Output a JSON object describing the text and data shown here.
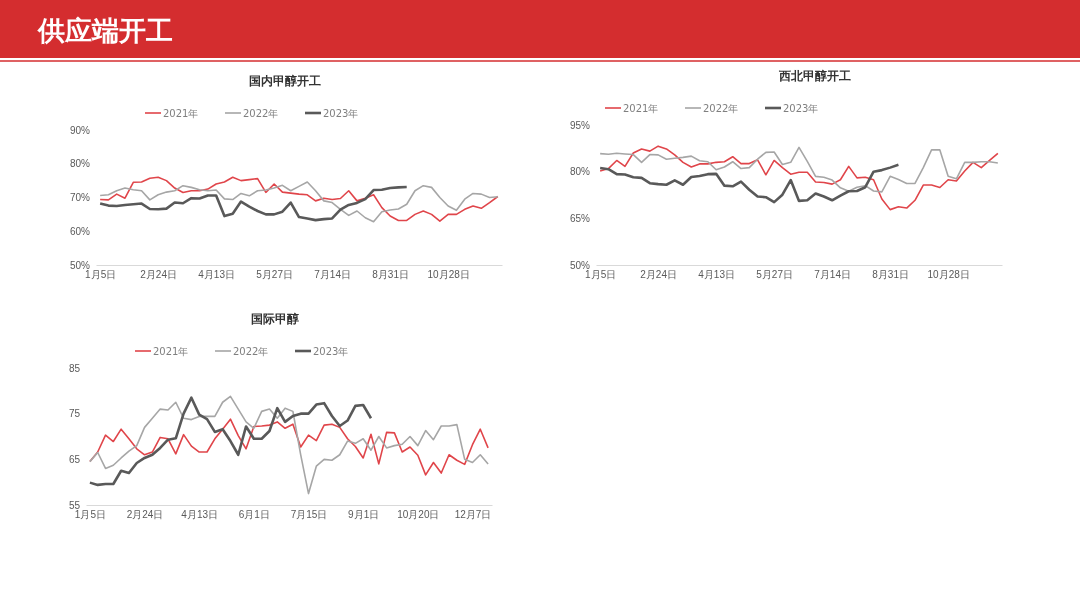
{
  "chart_data": [
    {
      "type": "line",
      "title": "国内甲醇开工",
      "annotations": [
        "供应端开工"
      ],
      "legend": "top",
      "marker": "none",
      "line_style": "solid",
      "categories": [
        "1月5日",
        null,
        null,
        null,
        null,
        null,
        null,
        "2月24日",
        null,
        null,
        null,
        null,
        null,
        null,
        "4月13日",
        null,
        null,
        null,
        null,
        null,
        null,
        "5月27日",
        null,
        null,
        null,
        null,
        null,
        null,
        "7月14日",
        null,
        null,
        null,
        null,
        null,
        null,
        "8月31日",
        null,
        null,
        null,
        null,
        null,
        null,
        "10月28日",
        null,
        null,
        null,
        null,
        null,
        null
      ],
      "ylim": [
        50,
        90
      ],
      "yticks": [
        {
          "value": 50,
          "label": "50%"
        },
        {
          "value": 60,
          "label": "60%"
        },
        {
          "value": 70,
          "label": "70%"
        },
        {
          "value": 80,
          "label": "80%"
        },
        {
          "value": 90,
          "label": "90%"
        }
      ],
      "series": [
        {
          "name": "2021年",
          "color": "#e0454a",
          "values": [
            69.4,
            69.3,
            71,
            69.8,
            74.5,
            74.6,
            75.7,
            76,
            75,
            72.8,
            71.5,
            72,
            72,
            72.5,
            74,
            74.6,
            76,
            75,
            75.3,
            75.6,
            71.5,
            74,
            71.6,
            71.3,
            71,
            70.8,
            69,
            69.8,
            69.4,
            69.7,
            72,
            69,
            69.8,
            70.8,
            67,
            64.5,
            63.2,
            63.2,
            65,
            66,
            65,
            63,
            65,
            65,
            66.5,
            67.5,
            66.8,
            68.5,
            70.3
          ]
        },
        {
          "name": "2022年",
          "color": "#a6a6a6",
          "values": [
            70.6,
            70.8,
            72,
            72.8,
            72.3,
            72,
            69.3,
            70.8,
            71.6,
            72,
            73.5,
            73,
            72.3,
            72,
            72.2,
            69.6,
            69.4,
            71.2,
            70.5,
            72,
            72.2,
            72.8,
            73.6,
            72,
            73.3,
            74.6,
            72,
            69,
            68.5,
            66.5,
            64.7,
            66,
            64,
            62.8,
            65.8,
            66.3,
            66.6,
            68,
            72,
            73.5,
            73,
            70,
            67.5,
            66.2,
            69.5,
            71.2,
            71,
            70,
            70.2
          ]
        },
        {
          "name": "2023年",
          "color": "#595959",
          "values": [
            68.2,
            67.6,
            67.5,
            67.8,
            68,
            68.2,
            66.6,
            66.5,
            66.7,
            68.5,
            68.3,
            69.8,
            69.7,
            70.6,
            70.6,
            64.5,
            65.2,
            68.8,
            67.3,
            66,
            65,
            65,
            65.8,
            68.5,
            64.2,
            63.8,
            63.3,
            63.6,
            63.8,
            66.4,
            67.8,
            68.4,
            69.5,
            72.2,
            72.3,
            72.8,
            73,
            73.1,
            null,
            null,
            null,
            null,
            null,
            null,
            null,
            null,
            null,
            null,
            null
          ]
        }
      ]
    },
    {
      "type": "line",
      "title": "西北甲醇开工",
      "legend": "top",
      "marker": "none",
      "line_style": "solid",
      "categories": [
        "1月5日",
        null,
        null,
        null,
        null,
        null,
        null,
        "2月24日",
        null,
        null,
        null,
        null,
        null,
        null,
        "4月13日",
        null,
        null,
        null,
        null,
        null,
        null,
        "5月27日",
        null,
        null,
        null,
        null,
        null,
        null,
        "7月14日",
        null,
        null,
        null,
        null,
        null,
        null,
        "8月31日",
        null,
        null,
        null,
        null,
        null,
        null,
        "10月28日",
        null,
        null,
        null,
        null,
        null,
        null
      ],
      "ylim": [
        50,
        95
      ],
      "yticks": [
        {
          "value": 50,
          "label": "50%"
        },
        {
          "value": 65,
          "label": "65%"
        },
        {
          "value": 80,
          "label": "80%"
        },
        {
          "value": 95,
          "label": "95%"
        }
      ],
      "series": [
        {
          "name": "2021年",
          "color": "#e0454a",
          "values": [
            80.2,
            81,
            83.6,
            81.7,
            86,
            87.3,
            86.6,
            88.2,
            87.3,
            85.4,
            83,
            81.5,
            82.5,
            82.5,
            83,
            83.2,
            84.8,
            82.6,
            82.6,
            83.8,
            79,
            83.6,
            81.3,
            79.2,
            79.8,
            79.8,
            76.7,
            76.5,
            76,
            77.4,
            81.7,
            78,
            78.2,
            77.4,
            71.2,
            67.8,
            68.7,
            68.3,
            70.8,
            75.7,
            75.7,
            74.9,
            77.4,
            77,
            80.2,
            83,
            81.3,
            83.6,
            85.9
          ]
        },
        {
          "name": "2022年",
          "color": "#a6a6a6",
          "values": [
            85.8,
            85.6,
            85.9,
            85.7,
            85.5,
            83,
            85.5,
            85.4,
            84,
            84.3,
            84.6,
            85,
            83.5,
            83.2,
            80.6,
            81.5,
            83.2,
            81,
            81.3,
            84,
            86.2,
            86.3,
            82.3,
            83,
            87.8,
            83.3,
            78.5,
            78.2,
            77.3,
            74.8,
            73.7,
            75,
            75.5,
            73.8,
            73.5,
            78.5,
            77.5,
            76.2,
            76.2,
            81.3,
            87,
            87,
            78.5,
            77.7,
            83,
            83,
            83.2,
            83.2,
            82.8
          ]
        },
        {
          "name": "2023年",
          "color": "#595959",
          "values": [
            81.2,
            80.8,
            79.2,
            79.1,
            78.2,
            78,
            76.3,
            76,
            75.8,
            77.2,
            75.8,
            78.3,
            78.6,
            79.2,
            79.3,
            75.5,
            75.3,
            76.8,
            74.2,
            72,
            71.8,
            70.2,
            72.6,
            77.3,
            70.6,
            70.8,
            73,
            72,
            70.8,
            72.3,
            73.7,
            73.8,
            75,
            80,
            80.5,
            81.3,
            82.2,
            null,
            null,
            null,
            null,
            null,
            null,
            null,
            null,
            null,
            null,
            null,
            null
          ]
        }
      ]
    },
    {
      "type": "line",
      "title": "国际甲醇",
      "legend": "top",
      "marker": "none",
      "line_style": "solid",
      "categories": [
        "1月5日",
        null,
        null,
        null,
        null,
        null,
        null,
        "2月24日",
        null,
        null,
        null,
        null,
        null,
        null,
        "4月13日",
        null,
        null,
        null,
        null,
        null,
        null,
        "6月1日",
        null,
        null,
        null,
        null,
        null,
        null,
        "7月15日",
        null,
        null,
        null,
        null,
        null,
        null,
        "9月1日",
        null,
        null,
        null,
        null,
        null,
        null,
        "10月20日",
        null,
        null,
        null,
        null,
        null,
        null,
        "12月7日",
        null,
        null
      ],
      "ylim": [
        55,
        85
      ],
      "yticks": [
        55,
        65,
        75,
        85
      ],
      "series": [
        {
          "name": "2021年",
          "color": "#e0454a",
          "values": [
            64.5,
            66.6,
            70.3,
            68.9,
            71.6,
            69.5,
            67.3,
            66,
            66.6,
            69.8,
            69.5,
            66.2,
            70.4,
            67.9,
            66.6,
            66.6,
            69.5,
            71.6,
            73.8,
            70.2,
            67.3,
            72.2,
            72.3,
            72.5,
            73.2,
            71.8,
            72.7,
            67.7,
            70.3,
            69.1,
            72.5,
            72.7,
            72,
            69.5,
            67.8,
            65.3,
            70.5,
            64,
            70.9,
            70.8,
            66.6,
            67.7,
            65.9,
            61.6,
            64.3,
            62,
            66,
            64.8,
            63.9,
            68.2,
            71.6,
            67.5
          ]
        },
        {
          "name": "2022年",
          "color": "#a6a6a6",
          "values": [
            64.5,
            66.5,
            63,
            63.7,
            65.3,
            66.8,
            68,
            72,
            74,
            76,
            75.8,
            77.5,
            74,
            73.7,
            74.4,
            74.4,
            74.4,
            77.5,
            78.8,
            76,
            73.2,
            71.8,
            75.5,
            76,
            74,
            76.2,
            75.5,
            66,
            57.5,
            63.5,
            65,
            64.8,
            66,
            69,
            68.5,
            69.5,
            67,
            70,
            67.5,
            68,
            68.3,
            70,
            68,
            71.3,
            69.3,
            72.3,
            72.3,
            72.6,
            65,
            64.3,
            66,
            64
          ]
        },
        {
          "name": "2023年",
          "color": "#595959",
          "values": [
            59.9,
            59.4,
            59.6,
            59.6,
            62.5,
            62,
            64.2,
            65.3,
            66,
            67.5,
            69.3,
            69.6,
            75,
            78.5,
            74.8,
            73.8,
            71,
            71.6,
            69,
            66,
            72.2,
            69.5,
            69.5,
            71.2,
            76.2,
            73.2,
            74.5,
            75,
            75,
            77,
            77.3,
            74.5,
            72.3,
            73.5,
            76.7,
            76.9,
            74,
            null,
            null,
            null,
            null,
            null,
            null,
            null,
            null,
            null,
            null,
            null,
            null,
            null,
            null,
            null
          ]
        }
      ]
    }
  ]
}
